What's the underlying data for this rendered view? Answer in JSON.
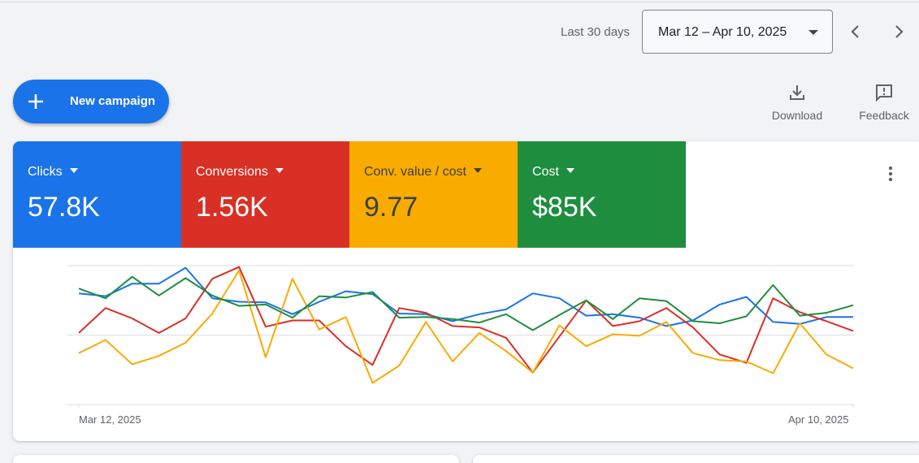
{
  "date_range": {
    "label": "Last 30 days",
    "value": "Mar 12 – Apr 10, 2025",
    "dropdown_icon": "caret-down-icon",
    "prev_icon": "chevron-left-icon",
    "next_icon": "chevron-right-icon"
  },
  "actions": {
    "new_campaign_label": "New campaign",
    "new_campaign_icon": "plus-icon",
    "download_label": "Download",
    "download_icon": "download-icon",
    "feedback_label": "Feedback",
    "feedback_icon": "feedback-icon"
  },
  "metrics": [
    {
      "name": "Clicks",
      "value": "57.8K",
      "color": "#1a73e8"
    },
    {
      "name": "Conversions",
      "value": "1.56K",
      "color": "#d93025"
    },
    {
      "name": "Conv. value / cost",
      "value": "9.77",
      "color": "#f9ab00"
    },
    {
      "name": "Cost",
      "value": "$85K",
      "color": "#1e8e3e"
    }
  ],
  "card_menu_icon": "more-vert-icon",
  "chart_data": {
    "type": "line",
    "x_start_label": "Mar 12, 2025",
    "x_end_label": "Apr 10, 2025",
    "x": [
      "Mar 12, 2025",
      "Mar 13, 2025",
      "Mar 14, 2025",
      "Mar 15, 2025",
      "Mar 16, 2025",
      "Mar 17, 2025",
      "Mar 18, 2025",
      "Mar 19, 2025",
      "Mar 20, 2025",
      "Mar 21, 2025",
      "Mar 22, 2025",
      "Mar 23, 2025",
      "Mar 24, 2025",
      "Mar 25, 2025",
      "Mar 26, 2025",
      "Mar 27, 2025",
      "Mar 28, 2025",
      "Mar 29, 2025",
      "Mar 30, 2025",
      "Mar 31, 2025",
      "Apr 1, 2025",
      "Apr 2, 2025",
      "Apr 3, 2025",
      "Apr 4, 2025",
      "Apr 5, 2025",
      "Apr 6, 2025",
      "Apr 7, 2025",
      "Apr 8, 2025",
      "Apr 9, 2025",
      "Apr 10, 2025"
    ],
    "ylim": [
      0,
      2
    ],
    "gridlines": 3,
    "y_tick_labels": false,
    "series": [
      {
        "name": "Clicks",
        "color": "#1a73e8",
        "values": [
          1.6,
          1.56,
          1.74,
          1.74,
          1.97,
          1.53,
          1.48,
          1.47,
          1.3,
          1.48,
          1.63,
          1.59,
          1.31,
          1.3,
          1.2,
          1.3,
          1.37,
          1.6,
          1.53,
          1.28,
          1.3,
          1.25,
          1.13,
          1.21,
          1.44,
          1.55,
          1.19,
          1.16,
          1.26,
          1.26
        ]
      },
      {
        "name": "Conversions",
        "color": "#d93025",
        "values": [
          1.03,
          1.39,
          1.24,
          1.03,
          1.24,
          1.81,
          1.98,
          1.12,
          1.21,
          1.21,
          0.84,
          0.57,
          1.39,
          1.32,
          1.13,
          1.11,
          0.96,
          0.46,
          0.98,
          1.5,
          1.13,
          1.2,
          1.39,
          1.11,
          0.72,
          0.6,
          1.53,
          1.33,
          1.2,
          1.06
        ]
      },
      {
        "name": "Conv. value / cost",
        "color": "#f9ab00",
        "values": [
          0.74,
          0.93,
          0.58,
          0.7,
          0.89,
          1.31,
          1.93,
          0.68,
          1.81,
          1.08,
          1.26,
          0.31,
          0.56,
          1.19,
          0.62,
          1.03,
          0.77,
          0.46,
          1.14,
          0.84,
          1.01,
          0.99,
          1.19,
          0.74,
          0.64,
          0.62,
          0.45,
          1.17,
          0.72,
          0.52
        ]
      },
      {
        "name": "Cost",
        "color": "#1e8e3e",
        "values": [
          1.67,
          1.53,
          1.84,
          1.57,
          1.82,
          1.57,
          1.42,
          1.44,
          1.25,
          1.56,
          1.54,
          1.62,
          1.25,
          1.26,
          1.23,
          1.18,
          1.3,
          1.07,
          1.29,
          1.5,
          1.23,
          1.53,
          1.49,
          1.2,
          1.17,
          1.27,
          1.72,
          1.28,
          1.32,
          1.43
        ]
      }
    ]
  }
}
